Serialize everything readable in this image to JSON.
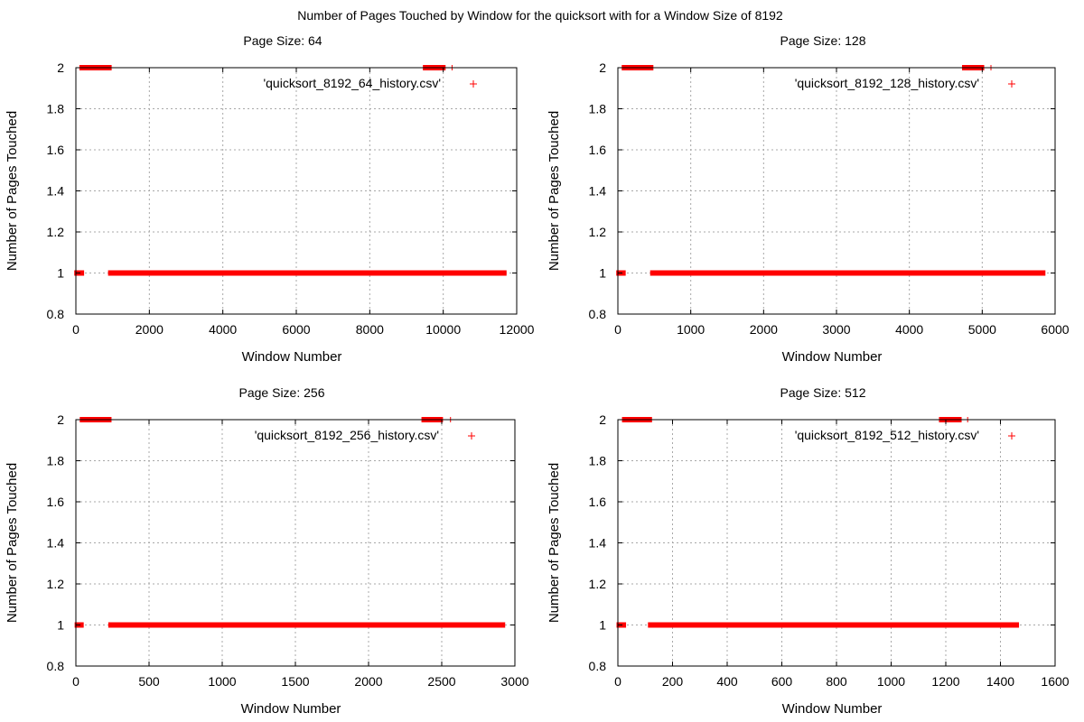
{
  "figure_title": "Number of Pages Touched by Window for the quicksort with for a Window Size of 8192",
  "chart_data": [
    {
      "type": "scatter",
      "title": "Page Size: 64",
      "xlabel": "Window Number",
      "ylabel": "Number of Pages Touched",
      "xlim": [
        0,
        12000
      ],
      "ylim": [
        0.8,
        2
      ],
      "xticks": [
        0,
        2000,
        4000,
        6000,
        8000,
        10000,
        12000
      ],
      "yticks": [
        0.8,
        1,
        1.2,
        1.4,
        1.6,
        1.8,
        2
      ],
      "ytick_labels": [
        "0.8",
        "1",
        "1.2",
        "1.4",
        "1.6",
        "1.8",
        "2"
      ],
      "grid": true,
      "legend_position": "top-right",
      "marker": "plus",
      "series": [
        {
          "name": "'quicksort_8192_64_history.csv'",
          "color": "#ff0000",
          "runs": [
            {
              "y": 1,
              "x_start": 30,
              "x_end": 150
            },
            {
              "y": 1,
              "x_start": 950,
              "x_end": 9500
            },
            {
              "y": 1,
              "x_start": 9560,
              "x_end": 9700
            },
            {
              "y": 1,
              "x_start": 9740,
              "x_end": 9880
            },
            {
              "y": 1,
              "x_start": 10000,
              "x_end": 11650
            },
            {
              "y": 2,
              "x_start": 170,
              "x_end": 900
            },
            {
              "y": 2,
              "x_start": 9520,
              "x_end": 9620
            },
            {
              "y": 2,
              "x_start": 9760,
              "x_end": 9990
            },
            {
              "y": 2,
              "x_start": 10240,
              "x_end": 10240
            }
          ]
        }
      ]
    },
    {
      "type": "scatter",
      "title": "Page Size: 128",
      "xlabel": "Window Number",
      "ylabel": "Number of Pages Touched",
      "xlim": [
        0,
        6000
      ],
      "ylim": [
        0.8,
        2
      ],
      "xticks": [
        0,
        1000,
        2000,
        3000,
        4000,
        5000,
        6000
      ],
      "yticks": [
        0.8,
        1,
        1.2,
        1.4,
        1.6,
        1.8,
        2
      ],
      "ytick_labels": [
        "0.8",
        "1",
        "1.2",
        "1.4",
        "1.6",
        "1.8",
        "2"
      ],
      "grid": true,
      "legend_position": "top-right",
      "marker": "plus",
      "series": [
        {
          "name": "'quicksort_8192_128_history.csv'",
          "color": "#ff0000",
          "runs": [
            {
              "y": 1,
              "x_start": 15,
              "x_end": 70
            },
            {
              "y": 1,
              "x_start": 480,
              "x_end": 4770
            },
            {
              "y": 1,
              "x_start": 4800,
              "x_end": 4950
            },
            {
              "y": 1,
              "x_start": 5000,
              "x_end": 5830
            },
            {
              "y": 2,
              "x_start": 90,
              "x_end": 450
            },
            {
              "y": 2,
              "x_start": 4760,
              "x_end": 4820
            },
            {
              "y": 2,
              "x_start": 4870,
              "x_end": 4990
            },
            {
              "y": 2,
              "x_start": 5120,
              "x_end": 5120
            }
          ]
        }
      ]
    },
    {
      "type": "scatter",
      "title": "Page Size: 256",
      "xlabel": "Window Number",
      "ylabel": "Number of Pages Touched",
      "xlim": [
        0,
        3000
      ],
      "ylim": [
        0.8,
        2
      ],
      "xticks": [
        0,
        500,
        1000,
        1500,
        2000,
        2500,
        3000
      ],
      "yticks": [
        0.8,
        1,
        1.2,
        1.4,
        1.6,
        1.8,
        2
      ],
      "ytick_labels": [
        "0.8",
        "1",
        "1.2",
        "1.4",
        "1.6",
        "1.8",
        "2"
      ],
      "grid": true,
      "legend_position": "top-right",
      "marker": "plus",
      "series": [
        {
          "name": "'quicksort_8192_256_history.csv'",
          "color": "#ff0000",
          "runs": [
            {
              "y": 1,
              "x_start": 10,
              "x_end": 35
            },
            {
              "y": 1,
              "x_start": 240,
              "x_end": 2380
            },
            {
              "y": 1,
              "x_start": 2400,
              "x_end": 2470
            },
            {
              "y": 1,
              "x_start": 2500,
              "x_end": 2915
            },
            {
              "y": 2,
              "x_start": 45,
              "x_end": 225
            },
            {
              "y": 2,
              "x_start": 2380,
              "x_end": 2410
            },
            {
              "y": 2,
              "x_start": 2430,
              "x_end": 2490
            },
            {
              "y": 2,
              "x_start": 2560,
              "x_end": 2560
            }
          ]
        }
      ]
    },
    {
      "type": "scatter",
      "title": "Page Size: 512",
      "xlabel": "Window Number",
      "ylabel": "Number of Pages Touched",
      "xlim": [
        0,
        1600
      ],
      "ylim": [
        0.8,
        2
      ],
      "xticks": [
        0,
        200,
        400,
        600,
        800,
        1000,
        1200,
        1400,
        1600
      ],
      "yticks": [
        0.8,
        1,
        1.2,
        1.4,
        1.6,
        1.8,
        2
      ],
      "ytick_labels": [
        "0.8",
        "1",
        "1.2",
        "1.4",
        "1.6",
        "1.8",
        "2"
      ],
      "grid": true,
      "legend_position": "top-right",
      "marker": "plus",
      "series": [
        {
          "name": "'quicksort_8192_512_history.csv'",
          "color": "#ff0000",
          "runs": [
            {
              "y": 1,
              "x_start": 5,
              "x_end": 20
            },
            {
              "y": 1,
              "x_start": 120,
              "x_end": 1190
            },
            {
              "y": 1,
              "x_start": 1200,
              "x_end": 1250
            },
            {
              "y": 1,
              "x_start": 1260,
              "x_end": 1458
            },
            {
              "y": 2,
              "x_start": 25,
              "x_end": 115
            },
            {
              "y": 2,
              "x_start": 1185,
              "x_end": 1205
            },
            {
              "y": 2,
              "x_start": 1220,
              "x_end": 1248
            },
            {
              "y": 2,
              "x_start": 1280,
              "x_end": 1280
            }
          ]
        }
      ]
    }
  ]
}
